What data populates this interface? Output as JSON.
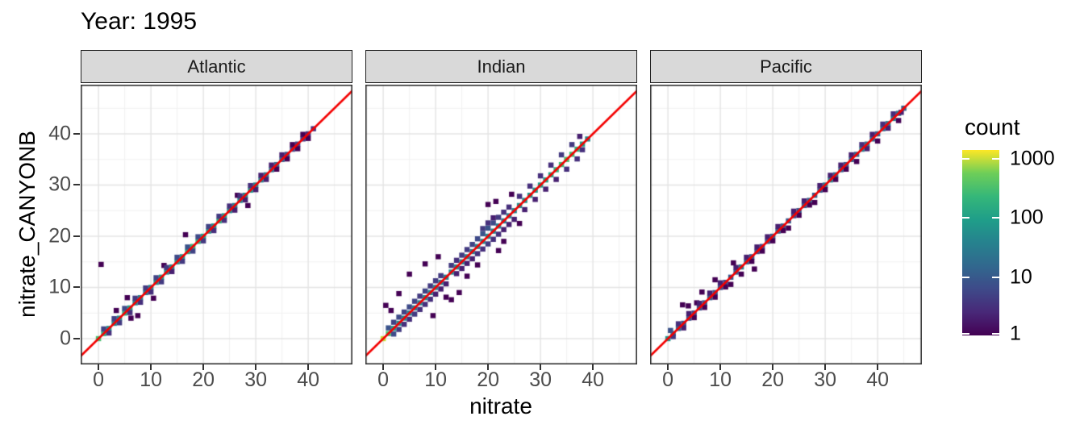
{
  "title": "Year: 1995",
  "axes": {
    "x_label": "nitrate",
    "y_label": "nitrate_CANYONB",
    "x_ticks": [
      0,
      10,
      20,
      30,
      40
    ],
    "y_ticks": [
      0,
      10,
      20,
      30,
      40
    ]
  },
  "legend": {
    "title": "count",
    "breaks": [
      1000,
      100,
      10,
      1
    ],
    "log_max": 3.13,
    "viridis": [
      "#440154",
      "#482878",
      "#3e4a89",
      "#31688e",
      "#26828e",
      "#1f9e89",
      "#35b779",
      "#6ece58",
      "#fde725"
    ]
  },
  "colors": {
    "background": "#ffffff",
    "ref_line": "#f40000",
    "grid_major": "#e4e4e4",
    "grid_minor": "#f1f1f1",
    "panel_border": "#333333",
    "strip_bg": "#d9d9d9",
    "strip_border": "#1f1f1f",
    "tick_text": "#4d4d4d"
  },
  "chart_data": {
    "type": "heatmap",
    "subtype": "bin2d",
    "title": "Year: 1995",
    "xlabel": "nitrate",
    "ylabel": "nitrate_CANYONB",
    "x_range": [
      -3.4,
      48.5
    ],
    "y_range": [
      -5.0,
      49.6
    ],
    "x_ticks": [
      0,
      10,
      20,
      30,
      40
    ],
    "y_ticks": [
      0,
      10,
      20,
      30,
      40
    ],
    "grid": true,
    "legend_position": "right",
    "reference_line": "y = x",
    "color_scale": {
      "name": "viridis",
      "transform": "log10",
      "domain": [
        1,
        1350
      ],
      "breaks": [
        1,
        10,
        100,
        1000
      ]
    },
    "facets": [
      {
        "name": "Atlantic",
        "diag_counts": [
          300,
          150,
          60,
          45,
          50,
          160,
          100,
          45,
          35,
          30,
          40,
          60,
          85,
          50,
          55,
          65,
          75,
          130,
          220,
          170,
          95,
          65,
          55,
          150,
          85,
          45,
          35,
          38,
          48,
          62,
          42,
          32,
          26,
          20,
          16,
          12,
          9,
          6,
          5,
          4,
          3,
          3
        ],
        "extra_bins": [
          [
            0.5,
            14.5,
            1
          ],
          [
            7.5,
            4.5,
            1
          ],
          [
            1,
            1.9,
            5
          ],
          [
            2,
            1.1,
            3
          ],
          [
            3,
            3.9,
            5
          ],
          [
            4,
            3.1,
            4
          ],
          [
            5,
            5.9,
            6
          ],
          [
            6,
            5.1,
            3
          ],
          [
            7,
            7.9,
            4
          ],
          [
            8,
            7.1,
            3
          ],
          [
            9,
            9.9,
            4
          ],
          [
            10,
            9.1,
            3
          ],
          [
            11,
            11.9,
            5
          ],
          [
            12,
            11.1,
            4
          ],
          [
            12.5,
            14.3,
            1
          ],
          [
            13,
            13.9,
            4
          ],
          [
            14,
            13.1,
            2
          ],
          [
            15,
            15.9,
            6
          ],
          [
            16,
            15.1,
            4
          ],
          [
            16.6,
            20.3,
            1
          ],
          [
            17,
            17.9,
            8
          ],
          [
            18,
            17.1,
            5
          ],
          [
            19,
            19.9,
            6
          ],
          [
            20,
            19.1,
            4
          ],
          [
            21,
            21.9,
            5
          ],
          [
            22,
            21.1,
            3
          ],
          [
            23,
            23.9,
            4
          ],
          [
            24,
            23.1,
            3
          ],
          [
            25,
            25.9,
            3
          ],
          [
            26,
            25.1,
            2
          ],
          [
            26.5,
            28,
            1
          ],
          [
            27,
            27.9,
            3
          ],
          [
            28,
            27.1,
            2
          ],
          [
            28.5,
            26,
            1
          ],
          [
            29,
            29.9,
            3
          ],
          [
            30,
            29.1,
            2
          ],
          [
            31,
            31.9,
            2
          ],
          [
            32,
            31.1,
            2
          ],
          [
            33,
            33.9,
            2
          ],
          [
            34,
            33.1,
            1
          ],
          [
            35,
            35.9,
            2
          ],
          [
            36,
            35.1,
            1
          ],
          [
            37,
            37.9,
            1
          ],
          [
            38,
            37.1,
            1
          ],
          [
            39,
            39.9,
            1
          ],
          [
            40,
            39.1,
            1
          ],
          [
            5.5,
            8,
            1
          ],
          [
            6.2,
            4,
            1
          ],
          [
            10.5,
            7.9,
            1
          ],
          [
            3.4,
            5.5,
            1
          ]
        ]
      },
      {
        "name": "Indian",
        "diag_counts": [
          950,
          320,
          90,
          55,
          45,
          38,
          32,
          42,
          52,
          48,
          38,
          32,
          42,
          52,
          48,
          42,
          38,
          32,
          42,
          48,
          52,
          42,
          38,
          32,
          38,
          42,
          52,
          62,
          72,
          82,
          92,
          105,
          125,
          190,
          260,
          320,
          270,
          190,
          95,
          45
        ],
        "extra_bins": [
          [
            1,
            2.1,
            8
          ],
          [
            2,
            0.9,
            6
          ],
          [
            2,
            3.2,
            5
          ],
          [
            3,
            1.8,
            4
          ],
          [
            3,
            4.2,
            6
          ],
          [
            4,
            2.8,
            3
          ],
          [
            4,
            5.2,
            5
          ],
          [
            5,
            3.8,
            3
          ],
          [
            5,
            6.2,
            6
          ],
          [
            6,
            4.8,
            4
          ],
          [
            6,
            7.3,
            5
          ],
          [
            7,
            5.7,
            3
          ],
          [
            7,
            8.3,
            4
          ],
          [
            8,
            6.7,
            3
          ],
          [
            8,
            9.3,
            5
          ],
          [
            9,
            7.7,
            3
          ],
          [
            9,
            10.3,
            4
          ],
          [
            10,
            8.7,
            2
          ],
          [
            10,
            11.3,
            4
          ],
          [
            11,
            9.7,
            2
          ],
          [
            11,
            12.3,
            4
          ],
          [
            12,
            10.7,
            2
          ],
          [
            13,
            14.3,
            4
          ],
          [
            14,
            12.7,
            2
          ],
          [
            14,
            15.3,
            3
          ],
          [
            15,
            13.7,
            2
          ],
          [
            15,
            16.3,
            4
          ],
          [
            16,
            14.7,
            2
          ],
          [
            16,
            17.4,
            4
          ],
          [
            17,
            15.6,
            2
          ],
          [
            17,
            18.4,
            5
          ],
          [
            18,
            16.6,
            3
          ],
          [
            18,
            19.5,
            6
          ],
          [
            19,
            17.5,
            3
          ],
          [
            19,
            20.5,
            8
          ],
          [
            19,
            21.5,
            4
          ],
          [
            20,
            18.5,
            4
          ],
          [
            20,
            21.6,
            8
          ],
          [
            20,
            22.6,
            3
          ],
          [
            21,
            19.4,
            3
          ],
          [
            21,
            22.6,
            6
          ],
          [
            21,
            23.6,
            2
          ],
          [
            22,
            20.4,
            3
          ],
          [
            22,
            23.7,
            4
          ],
          [
            23,
            21.3,
            2
          ],
          [
            23,
            24.7,
            3
          ],
          [
            24,
            22.3,
            2
          ],
          [
            24,
            25.7,
            3
          ],
          [
            25,
            23.3,
            2
          ],
          [
            26,
            27.8,
            3
          ],
          [
            27,
            25.2,
            2
          ],
          [
            28,
            29.8,
            3
          ],
          [
            29,
            27.2,
            2
          ],
          [
            30,
            31.8,
            3
          ],
          [
            31,
            29.2,
            2
          ],
          [
            32,
            33.9,
            3
          ],
          [
            33,
            31.1,
            2
          ],
          [
            34,
            35.9,
            4
          ],
          [
            35,
            33.1,
            3
          ],
          [
            36,
            37.9,
            4
          ],
          [
            37,
            35.1,
            3
          ],
          [
            38,
            36.9,
            3
          ],
          [
            37.5,
            39.5,
            2
          ],
          [
            0.5,
            6.5,
            1
          ],
          [
            1.5,
            5.5,
            1
          ],
          [
            5,
            12.6,
            1
          ],
          [
            8,
            14.6,
            1
          ],
          [
            13,
            7.6,
            1
          ],
          [
            14.5,
            9,
            1
          ],
          [
            12,
            8.1,
            1
          ],
          [
            10.5,
            16,
            1
          ],
          [
            16,
            12.2,
            1
          ],
          [
            20,
            26.2,
            1
          ],
          [
            22,
            17.2,
            1
          ],
          [
            23,
            19,
            1
          ],
          [
            26,
            22.5,
            1
          ],
          [
            9.5,
            4.5,
            1
          ],
          [
            3,
            8.8,
            1
          ],
          [
            18,
            14.4,
            1
          ],
          [
            21.5,
            26.8,
            1
          ],
          [
            24.5,
            28.2,
            1
          ]
        ]
      },
      {
        "name": "Pacific",
        "diag_counts": [
          70,
          35,
          14,
          9,
          7,
          6,
          7,
          9,
          11,
          9,
          7,
          6,
          9,
          11,
          32,
          13,
          9,
          7,
          6,
          9,
          11,
          13,
          11,
          9,
          7,
          9,
          11,
          13,
          11,
          9,
          27,
          32,
          16,
          11,
          9,
          11,
          13,
          32,
          22,
          13,
          11,
          16,
          27,
          32,
          22,
          11
        ],
        "extra_bins": [
          [
            0.5,
            1.6,
            8
          ],
          [
            1,
            0.4,
            4
          ],
          [
            2,
            2.9,
            3
          ],
          [
            3,
            2.1,
            2
          ],
          [
            4,
            4.9,
            2
          ],
          [
            5,
            4.1,
            1
          ],
          [
            5.5,
            7,
            1
          ],
          [
            6,
            6.9,
            2
          ],
          [
            6.5,
            9.1,
            1
          ],
          [
            7,
            6.1,
            1
          ],
          [
            8,
            8.9,
            2
          ],
          [
            9,
            8.1,
            1
          ],
          [
            10,
            10.9,
            2
          ],
          [
            11,
            10.1,
            1
          ],
          [
            12,
            10.6,
            1
          ],
          [
            13,
            13.9,
            2
          ],
          [
            14,
            12.6,
            1
          ],
          [
            15,
            15.9,
            2
          ],
          [
            16,
            15.1,
            1
          ],
          [
            16.5,
            13.6,
            1
          ],
          [
            17,
            17.9,
            2
          ],
          [
            18,
            17.1,
            1
          ],
          [
            19,
            19.9,
            2
          ],
          [
            20,
            19.1,
            1
          ],
          [
            21,
            21.9,
            2
          ],
          [
            22,
            21.1,
            1
          ],
          [
            23,
            21.6,
            1
          ],
          [
            24,
            24.9,
            2
          ],
          [
            25,
            24.1,
            1
          ],
          [
            26,
            26.9,
            2
          ],
          [
            27,
            26.1,
            1
          ],
          [
            28,
            26.6,
            1
          ],
          [
            29,
            29.9,
            2
          ],
          [
            30,
            29.1,
            1
          ],
          [
            31,
            31.9,
            2
          ],
          [
            32,
            31.1,
            1
          ],
          [
            33,
            33.9,
            2
          ],
          [
            34,
            33.1,
            1
          ],
          [
            35,
            35.9,
            2
          ],
          [
            36,
            34.6,
            1
          ],
          [
            37,
            37.9,
            3
          ],
          [
            38,
            37.1,
            2
          ],
          [
            39,
            39.9,
            2
          ],
          [
            40,
            38.6,
            1
          ],
          [
            41,
            41.9,
            3
          ],
          [
            42,
            41.1,
            2
          ],
          [
            43,
            43.9,
            3
          ],
          [
            44,
            42.6,
            1
          ],
          [
            44.5,
            44.2,
            2
          ],
          [
            3.9,
            6.4,
            1
          ],
          [
            9,
            11.5,
            1
          ],
          [
            12.5,
            14.8,
            1
          ],
          [
            2.8,
            6.6,
            1
          ]
        ]
      }
    ]
  }
}
